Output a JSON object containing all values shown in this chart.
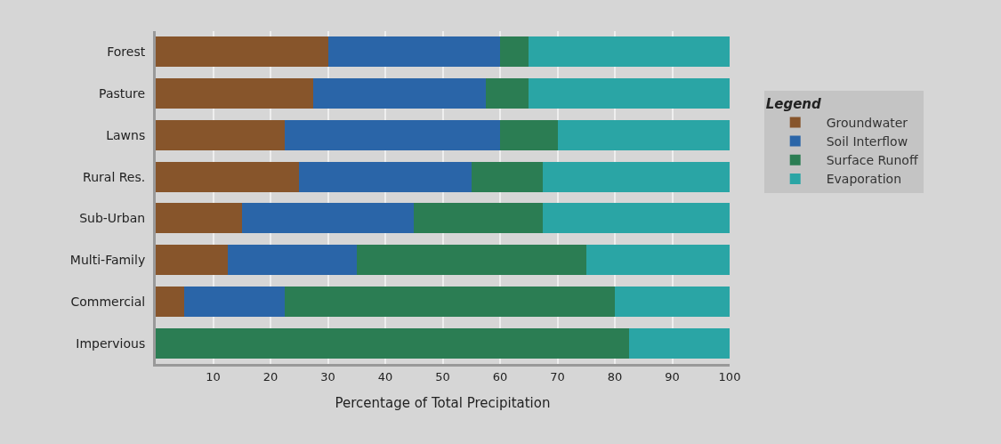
{
  "chart_data": {
    "type": "bar",
    "orientation": "horizontal",
    "stacked": true,
    "categories": [
      "Forest",
      "Pasture",
      "Lawns",
      "Rural Res.",
      "Sub-Urban",
      "Multi-Family",
      "Commercial",
      "Impervious"
    ],
    "series": [
      {
        "name": "Groundwater",
        "color": "#87552b",
        "values": [
          30,
          27.5,
          22.5,
          25,
          15,
          12.5,
          5,
          0
        ]
      },
      {
        "name": "Soil Interflow",
        "color": "#2a65a8",
        "values": [
          30,
          30,
          37.5,
          30,
          30,
          22.5,
          17.5,
          0
        ]
      },
      {
        "name": "Surface Runoff",
        "color": "#2b7d53",
        "values": [
          5,
          7.5,
          10,
          12.5,
          22.5,
          40,
          57.5,
          82.5
        ]
      },
      {
        "name": "Evaporation",
        "color": "#2aa5a5",
        "values": [
          35,
          35,
          30,
          32.5,
          32.5,
          25,
          20,
          17.5
        ]
      }
    ],
    "xlabel": "Percentage of Total Precipitation",
    "legend_title": "Legend",
    "legend": "right",
    "xlim": [
      0,
      100
    ],
    "xticks": [
      10,
      20,
      30,
      40,
      50,
      60,
      70,
      80,
      90,
      100
    ],
    "grid": "x"
  }
}
